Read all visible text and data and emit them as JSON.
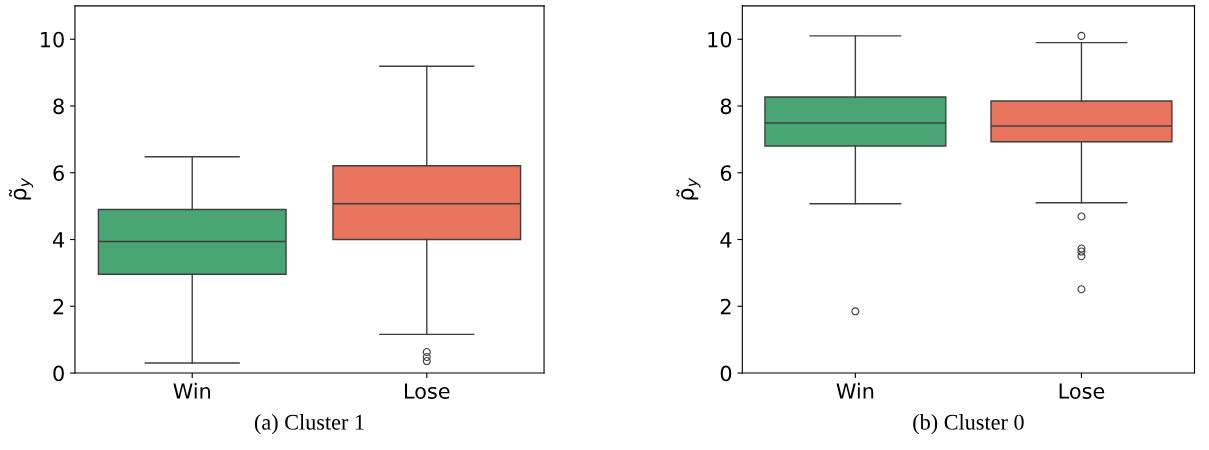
{
  "chart_data": [
    {
      "type": "box",
      "categories": [
        "Win",
        "Lose"
      ],
      "colors": [
        "#4aa574",
        "#e9745e"
      ],
      "ylabel": "ρ̃$_{y}$",
      "ylim": [
        0,
        11
      ],
      "yticks": [
        0,
        2,
        4,
        6,
        8,
        10
      ],
      "annotations": [
        "(a) Cluster 1"
      ],
      "boxes": [
        {
          "low": 0.3,
          "q1": 2.96,
          "median": 3.94,
          "q3": 4.9,
          "high": 6.48
        },
        {
          "low": 1.16,
          "q1": 4.0,
          "median": 5.07,
          "q3": 6.21,
          "high": 9.19,
          "outliers": [
            0.63,
            0.48,
            0.36
          ]
        }
      ]
    },
    {
      "type": "box",
      "categories": [
        "Win",
        "Lose"
      ],
      "colors": [
        "#4aa574",
        "#e9745e"
      ],
      "ylabel": "ρ̃$_{y}$",
      "ylim": [
        0,
        11
      ],
      "yticks": [
        0,
        2,
        4,
        6,
        8,
        10
      ],
      "annotations": [
        "(b) Cluster 0"
      ],
      "boxes": [
        {
          "low": 5.07,
          "q1": 6.8,
          "median": 7.49,
          "q3": 8.27,
          "high": 10.1,
          "outliers": [
            1.85
          ]
        },
        {
          "low": 5.1,
          "q1": 6.93,
          "median": 7.4,
          "q3": 8.15,
          "high": 9.9,
          "outliers": [
            10.1,
            4.69,
            3.73,
            3.64,
            3.5,
            2.51
          ]
        }
      ]
    }
  ]
}
